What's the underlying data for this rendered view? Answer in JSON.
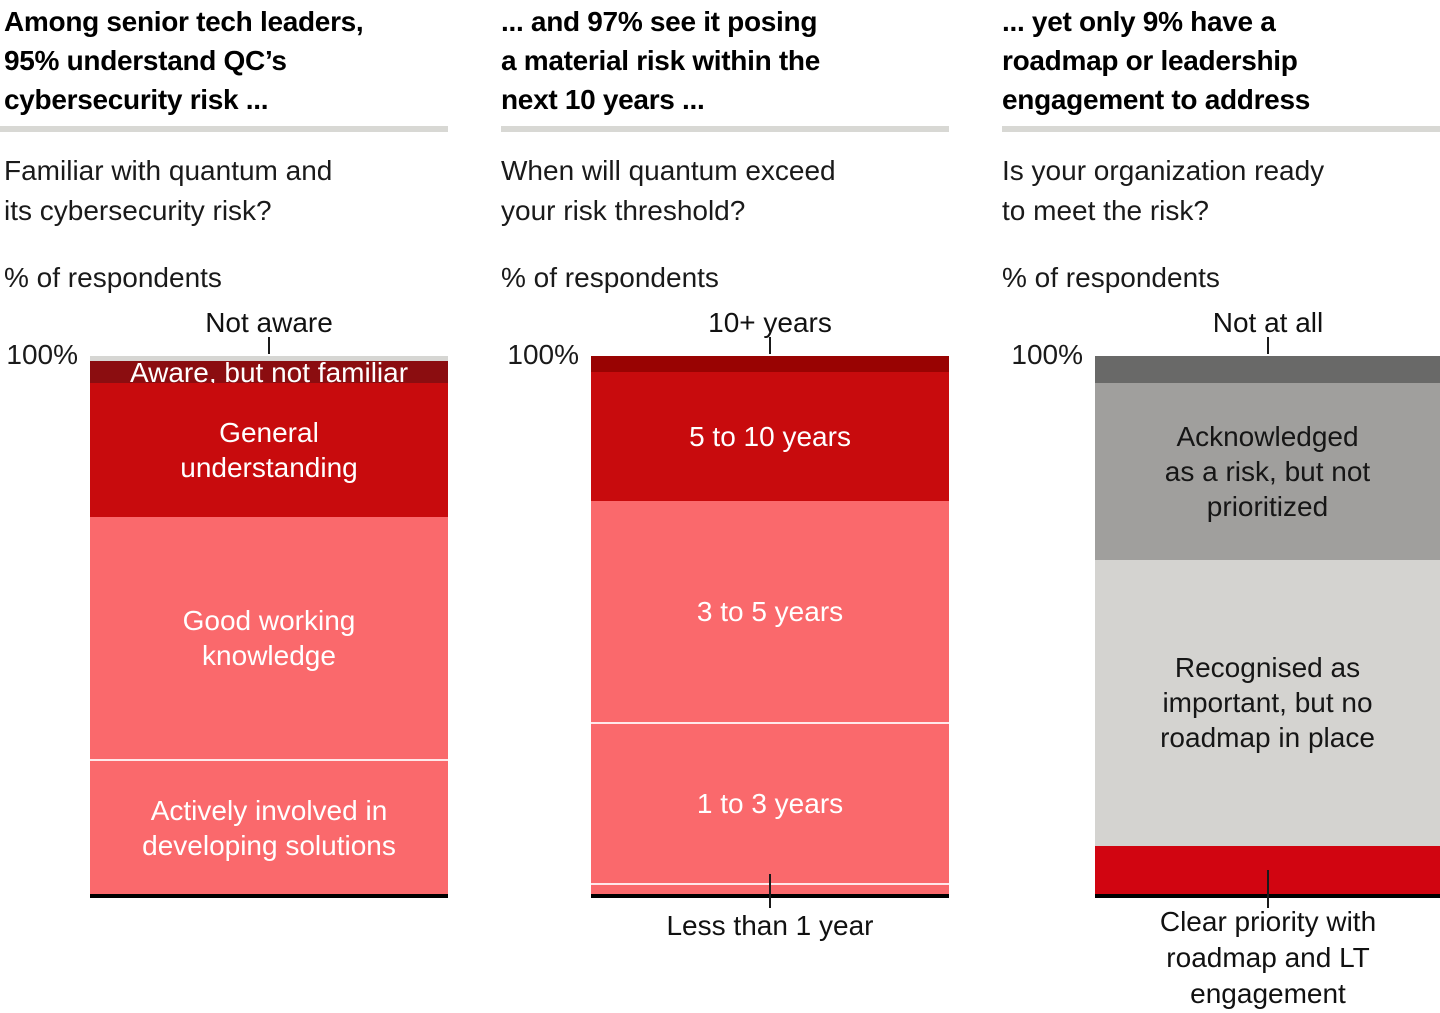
{
  "unit_label": "% of respondents",
  "axis_top_label": "100%",
  "palette": {
    "dark_red": "#8b0d10",
    "deep_red": "#990302",
    "red": "#c80b0d",
    "bright_red": "#d10511",
    "pink": "#fa696c",
    "sliver_gray": "#d6d6d3",
    "dark_gray": "#696968",
    "mid_gray": "#a09f9d",
    "light_gray": "#d4d3d0",
    "rule_gray": "#d8d8d4",
    "axis_black": "#000000"
  },
  "chart_data": [
    {
      "type": "bar",
      "subtype": "stacked-100-column",
      "title": "Among senior tech leaders,\n95% understand QC’s\ncybersecurity risk ...",
      "question": "Familiar with quantum and\nits cybersecurity risk?",
      "ylabel": "% of respondents",
      "ylim": [
        0,
        100
      ],
      "ylim_top_label": "100%",
      "top_callout": {
        "label": "Not aware"
      },
      "bottom_callout": null,
      "categories": [
        "Not aware",
        "Aware, but not familiar",
        "General understanding",
        "Good working knowledge",
        "Actively involved in developing solutions"
      ],
      "values": [
        1,
        4,
        25,
        45,
        25
      ],
      "segments": [
        {
          "label": "Not aware",
          "value": 1,
          "color": "#d6d6d3",
          "inside_label": false,
          "text_color": null,
          "hairline": false
        },
        {
          "label": "Aware, but not familiar",
          "value": 4,
          "color": "#8b0d10",
          "inside_label": true,
          "text_color": "#ffffff",
          "hairline": false
        },
        {
          "label": "General understanding",
          "label_lines": [
            "General",
            "understanding"
          ],
          "value": 25,
          "color": "#c80b0d",
          "inside_label": true,
          "text_color": "#ffffff",
          "hairline": false
        },
        {
          "label": "Good working knowledge",
          "label_lines": [
            "Good working",
            "knowledge"
          ],
          "value": 45,
          "color": "#fa696c",
          "inside_label": true,
          "text_color": "#ffffff",
          "hairline": false
        },
        {
          "label": "Actively involved in developing solutions",
          "label_lines": [
            "Actively involved in",
            "developing solutions"
          ],
          "value": 25,
          "color": "#fa696c",
          "inside_label": true,
          "text_color": "#ffffff",
          "hairline": true
        }
      ]
    },
    {
      "type": "bar",
      "subtype": "stacked-100-column",
      "title": "... and 97% see it posing\na material risk within the\nnext 10 years ...",
      "question": "When will quantum exceed\nyour risk threshold?",
      "ylabel": "% of respondents",
      "ylim": [
        0,
        100
      ],
      "ylim_top_label": "100%",
      "top_callout": {
        "label": "10+ years"
      },
      "bottom_callout": {
        "label": "Less than 1 year"
      },
      "categories": [
        "10+ years",
        "5 to 10 years",
        "3 to 5 years",
        "1 to 3 years",
        "Less than 1 year"
      ],
      "values": [
        3,
        24,
        41,
        30,
        2
      ],
      "segments": [
        {
          "label": "10+ years",
          "value": 3,
          "color": "#990302",
          "inside_label": false,
          "text_color": null,
          "hairline": false
        },
        {
          "label": "5 to 10 years",
          "value": 24,
          "color": "#c80b0d",
          "inside_label": true,
          "text_color": "#ffffff",
          "hairline": false
        },
        {
          "label": "3 to 5 years",
          "value": 41,
          "color": "#fa696c",
          "inside_label": true,
          "text_color": "#ffffff",
          "hairline": false
        },
        {
          "label": "1 to 3 years",
          "value": 30,
          "color": "#fa696c",
          "inside_label": true,
          "text_color": "#ffffff",
          "hairline": true
        },
        {
          "label": "Less than 1 year",
          "value": 2,
          "color": "#fa696c",
          "inside_label": false,
          "text_color": null,
          "hairline": true
        }
      ]
    },
    {
      "type": "bar",
      "subtype": "stacked-100-column",
      "title": "... yet only 9% have a\nroadmap or leadership\nengagement to address",
      "question": "Is your organization ready\nto meet the risk?",
      "ylabel": "% of respondents",
      "ylim": [
        0,
        100
      ],
      "ylim_top_label": "100%",
      "top_callout": {
        "label": "Not at all"
      },
      "bottom_callout": {
        "label": "Clear priority with\nroadmap and LT\nengagement"
      },
      "categories": [
        "Not at all",
        "Acknowledged as a risk, but not prioritized",
        "Recognised as important, but no roadmap in place",
        "Clear priority with roadmap and LT engagement"
      ],
      "values": [
        5,
        33,
        53,
        9
      ],
      "segments": [
        {
          "label": "Not at all",
          "value": 5,
          "color": "#696968",
          "inside_label": false,
          "text_color": null,
          "hairline": false
        },
        {
          "label": "Acknowledged as a risk, but not prioritized",
          "label_lines": [
            "Acknowledged",
            "as a risk, but not",
            "prioritized"
          ],
          "value": 33,
          "color": "#a09f9d",
          "inside_label": true,
          "text_color": "#161616",
          "hairline": false
        },
        {
          "label": "Recognised as important, but no roadmap in place",
          "label_lines": [
            "Recognised as",
            "important, but no",
            "roadmap in place"
          ],
          "value": 53,
          "color": "#d4d3d0",
          "inside_label": true,
          "text_color": "#161616",
          "hairline": false
        },
        {
          "label": "Clear priority with roadmap and LT engagement",
          "value": 9,
          "color": "#d10511",
          "inside_label": false,
          "text_color": null,
          "hairline": false
        }
      ]
    }
  ]
}
